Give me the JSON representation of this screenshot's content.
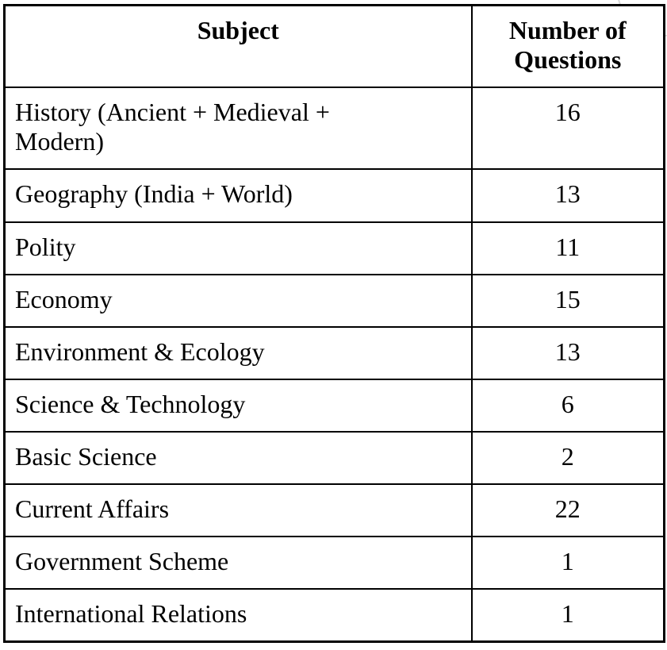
{
  "page": {
    "background_color": "#ffffff",
    "border_color": "#000000",
    "text_color": "#000000",
    "artifact_color": "#d9d9d9"
  },
  "table": {
    "columns": [
      {
        "key": "subject",
        "label": "Subject"
      },
      {
        "key": "questions",
        "label": "Number of Questions"
      }
    ],
    "rows": [
      {
        "subject": "History (Ancient + Medieval + Modern)",
        "questions": "16"
      },
      {
        "subject": "Geography (India + World)",
        "questions": "13"
      },
      {
        "subject": "Polity",
        "questions": "11"
      },
      {
        "subject": "Economy",
        "questions": "15"
      },
      {
        "subject": "Environment & Ecology",
        "questions": "13"
      },
      {
        "subject": "Science & Technology",
        "questions": "6"
      },
      {
        "subject": "Basic Science",
        "questions": "2"
      },
      {
        "subject": "Current Affairs",
        "questions": "22"
      },
      {
        "subject": "Government Scheme",
        "questions": "1"
      },
      {
        "subject": "International Relations",
        "questions": "1"
      }
    ]
  },
  "chart_data": {
    "type": "table",
    "columns": [
      "Subject",
      "Number of Questions"
    ],
    "categories": [
      "History (Ancient + Medieval + Modern)",
      "Geography (India + World)",
      "Polity",
      "Economy",
      "Environment & Ecology",
      "Science & Technology",
      "Basic Science",
      "Current Affairs",
      "Government Scheme",
      "International Relations"
    ],
    "values": [
      16,
      13,
      11,
      15,
      13,
      6,
      2,
      22,
      1,
      1
    ]
  }
}
